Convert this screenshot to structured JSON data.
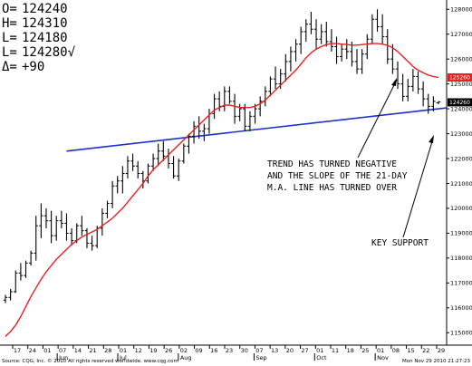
{
  "chart_data": {
    "type": "ohlc",
    "title": "",
    "readout": [
      {
        "label": "O=",
        "value": "124240"
      },
      {
        "label": "H=",
        "value": "124310"
      },
      {
        "label": "L=",
        "value": "124180"
      },
      {
        "label": "L=",
        "value": "124280√"
      },
      {
        "label": "Δ=",
        "value": "+90"
      }
    ],
    "ylim": [
      114500,
      128300
    ],
    "yticks": [
      115000,
      116000,
      117000,
      118000,
      119000,
      120000,
      121000,
      122000,
      123000,
      124000,
      125000,
      126000,
      127000,
      128000
    ],
    "price_tags": [
      {
        "value": 125260,
        "label": "125260",
        "color": "#e8201e"
      },
      {
        "label": "124260",
        "value": 124260,
        "color": "#000000"
      }
    ],
    "xticks": [
      "17",
      "24",
      "01",
      "07",
      "14",
      "21",
      "28",
      "01",
      "12",
      "19",
      "26",
      "02",
      "09",
      "16",
      "23",
      "30",
      "07",
      "13",
      "20",
      "27",
      "01",
      "11",
      "18",
      "25",
      "01",
      "08",
      "15",
      "22",
      "29"
    ],
    "month_labels": [
      {
        "label": "Jun",
        "at": 3
      },
      {
        "label": "Jul",
        "at": 7
      },
      {
        "label": "Aug",
        "at": 11
      },
      {
        "label": "Sep",
        "at": 16
      },
      {
        "label": "Oct",
        "at": 20
      },
      {
        "label": "Nov",
        "at": 24
      }
    ],
    "bars": [
      [
        116310,
        116520,
        116190,
        116420
      ],
      [
        116420,
        116760,
        116300,
        116650
      ],
      [
        116650,
        117500,
        116600,
        117400
      ],
      [
        117400,
        117800,
        117100,
        117300
      ],
      [
        117300,
        117900,
        117200,
        117800
      ],
      [
        117800,
        118300,
        117700,
        118200
      ],
      [
        118200,
        119700,
        117900,
        119300
      ],
      [
        119300,
        120200,
        118800,
        119700
      ],
      [
        119700,
        120000,
        119200,
        119500
      ],
      [
        119500,
        119900,
        118600,
        118900
      ],
      [
        118900,
        119700,
        118700,
        119500
      ],
      [
        119500,
        119900,
        119200,
        119400
      ],
      [
        119400,
        119800,
        118700,
        119000
      ],
      [
        119000,
        119200,
        118500,
        118700
      ],
      [
        118700,
        119400,
        118600,
        119300
      ],
      [
        119300,
        119700,
        118900,
        119100
      ],
      [
        119100,
        119200,
        118400,
        118600
      ],
      [
        118600,
        118900,
        118300,
        118500
      ],
      [
        118500,
        119300,
        118400,
        119200
      ],
      [
        119200,
        120000,
        118900,
        119800
      ],
      [
        119800,
        120300,
        119600,
        120200
      ],
      [
        120200,
        121100,
        120000,
        120900
      ],
      [
        120900,
        121300,
        120600,
        121100
      ],
      [
        121100,
        121700,
        120600,
        121400
      ],
      [
        121400,
        122100,
        121200,
        121900
      ],
      [
        121900,
        122200,
        121500,
        121700
      ],
      [
        121700,
        121900,
        121200,
        121400
      ],
      [
        121400,
        121500,
        120800,
        121100
      ],
      [
        121100,
        121800,
        121000,
        121700
      ],
      [
        121700,
        122200,
        121500,
        122000
      ],
      [
        122000,
        122600,
        121700,
        122300
      ],
      [
        122300,
        122700,
        121900,
        122100
      ],
      [
        122100,
        122400,
        121600,
        121800
      ],
      [
        121800,
        122100,
        121200,
        121300
      ],
      [
        121300,
        122000,
        121100,
        121900
      ],
      [
        121900,
        122600,
        121800,
        122500
      ],
      [
        122500,
        123000,
        122200,
        122900
      ],
      [
        122900,
        123500,
        122600,
        123300
      ],
      [
        123300,
        123700,
        122800,
        123100
      ],
      [
        123100,
        123400,
        122700,
        123200
      ],
      [
        123200,
        124000,
        123000,
        123800
      ],
      [
        123800,
        124600,
        123600,
        124400
      ],
      [
        124400,
        124700,
        123900,
        124100
      ],
      [
        124100,
        124900,
        123900,
        124700
      ],
      [
        124700,
        124900,
        124200,
        124300
      ],
      [
        124300,
        124600,
        123400,
        123700
      ],
      [
        123700,
        124200,
        123500,
        124000
      ],
      [
        124000,
        124200,
        123100,
        123300
      ],
      [
        123300,
        123900,
        123100,
        123700
      ],
      [
        123700,
        124200,
        123400,
        124000
      ],
      [
        124000,
        124500,
        123700,
        124300
      ],
      [
        124300,
        124900,
        124100,
        124700
      ],
      [
        124700,
        125300,
        124500,
        125200
      ],
      [
        125200,
        125700,
        124800,
        125000
      ],
      [
        125000,
        125600,
        124800,
        125400
      ],
      [
        125400,
        126200,
        125100,
        125900
      ],
      [
        125900,
        126500,
        125500,
        126300
      ],
      [
        126300,
        126800,
        125900,
        126600
      ],
      [
        126600,
        127300,
        126200,
        127100
      ],
      [
        127100,
        127600,
        126700,
        127400
      ],
      [
        127400,
        127900,
        127000,
        127200
      ],
      [
        127200,
        127600,
        126400,
        126800
      ],
      [
        126800,
        127400,
        126600,
        127100
      ],
      [
        127100,
        127500,
        126500,
        126700
      ],
      [
        126700,
        127200,
        126300,
        126500
      ],
      [
        126500,
        126900,
        125800,
        126100
      ],
      [
        126100,
        126600,
        125900,
        126400
      ],
      [
        126400,
        126800,
        126000,
        126300
      ],
      [
        126300,
        126700,
        125700,
        125900
      ],
      [
        125900,
        126400,
        125400,
        125600
      ],
      [
        125600,
        126400,
        125400,
        126200
      ],
      [
        126200,
        127000,
        126000,
        126800
      ],
      [
        126800,
        127800,
        126600,
        127600
      ],
      [
        127600,
        128000,
        127100,
        127300
      ],
      [
        127300,
        127800,
        126600,
        126900
      ],
      [
        126900,
        127200,
        125800,
        126000
      ],
      [
        126000,
        126600,
        125400,
        125600
      ],
      [
        125600,
        125900,
        124800,
        125000
      ],
      [
        125000,
        125400,
        124300,
        124500
      ],
      [
        124500,
        125200,
        124300,
        124900
      ],
      [
        124900,
        125600,
        124700,
        125300
      ],
      [
        125300,
        125500,
        124600,
        124800
      ],
      [
        124800,
        125100,
        124100,
        124400
      ],
      [
        124400,
        124600,
        123800,
        124100
      ],
      [
        124100,
        124500,
        123900,
        124300
      ],
      [
        124240,
        124310,
        124180,
        124280
      ]
    ],
    "moving_average": {
      "name": "",
      "color": "#e8201e",
      "values": [
        114850,
        115050,
        115300,
        115650,
        116050,
        116450,
        116800,
        117150,
        117450,
        117700,
        117950,
        118150,
        118350,
        118550,
        118700,
        118850,
        118950,
        119050,
        119150,
        119300,
        119450,
        119600,
        119800,
        120000,
        120250,
        120500,
        120750,
        121000,
        121300,
        121550,
        121750,
        121950,
        122150,
        122350,
        122550,
        122750,
        122950,
        123150,
        123350,
        123550,
        123750,
        123950,
        124050,
        124150,
        124150,
        124100,
        124050,
        124050,
        124050,
        124100,
        124200,
        124350,
        124550,
        124750,
        124950,
        125150,
        125350,
        125550,
        125800,
        126050,
        126250,
        126400,
        126500,
        126580,
        126620,
        126620,
        126600,
        126580,
        126560,
        126560,
        126580,
        126600,
        126620,
        126620,
        126600,
        126550,
        126450,
        126300,
        126100,
        125900,
        125700,
        125550,
        125450,
        125350,
        125300,
        125260
      ]
    },
    "trendline": {
      "color": "#1c2fd1",
      "from": [
        12,
        122300
      ],
      "to": [
        85,
        124000
      ]
    },
    "annotations": [
      {
        "lines": [
          "TREND HAS TURNED NEGATIVE",
          "AND THE SLOPE OF THE 21-DAY",
          "M.A. LINE HAS TURNED OVER"
        ]
      },
      {
        "lines": [
          "KEY SUPPORT"
        ]
      }
    ],
    "grid": false
  },
  "footer": {
    "left": "Source: CQG, Inc. © 2010 All rights reserved worldwide. www.cqg.com",
    "right": "Mon Nov 29 2010 21:27:23"
  }
}
